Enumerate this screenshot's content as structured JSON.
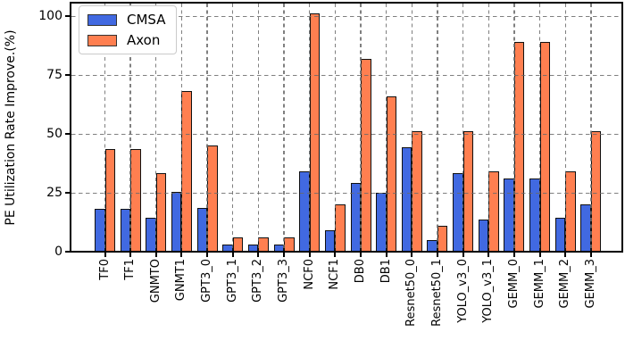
{
  "chart_data": {
    "type": "bar",
    "title": "",
    "xlabel": "",
    "ylabel": "PE Utilization Rate Improve.(%)",
    "categories": [
      "TF0",
      "TF1",
      "GNMTO",
      "GNMT1",
      "GPT3_0",
      "GPT3_1",
      "GPT3_2",
      "GPT3_3",
      "NCF0",
      "NCF1",
      "DB0",
      "DB1",
      "Resnet50_0",
      "Resnet50_1",
      "YOLO_v3_0",
      "YOLO_v3_1",
      "GEMM_0",
      "GEMM_1",
      "GEMM_2",
      "GEMM_3"
    ],
    "series": [
      {
        "name": "CMSA",
        "color": "#4169E1",
        "values": [
          18,
          18,
          14.5,
          25.5,
          18.5,
          3,
          3,
          3,
          34,
          9,
          29,
          25,
          44.5,
          5,
          33.5,
          13.5,
          31,
          31,
          14.5,
          20
        ]
      },
      {
        "name": "Axon",
        "color": "#FF7F50",
        "values": [
          43.5,
          43.5,
          33.5,
          68,
          45,
          6,
          6,
          6,
          101,
          20,
          82,
          66,
          51,
          11,
          51,
          34,
          89,
          89,
          34,
          51
        ]
      }
    ],
    "yticks": [
      0,
      25,
      50,
      75,
      100
    ],
    "ytick_labels": [
      "0",
      "25",
      "50",
      "75",
      "100"
    ],
    "ylim": [
      0,
      105
    ],
    "grid": "dashed-both-axes-over-bars",
    "legend_position": "upper-left",
    "bar_edge_color": "#000000",
    "grid_color": "#999999"
  }
}
